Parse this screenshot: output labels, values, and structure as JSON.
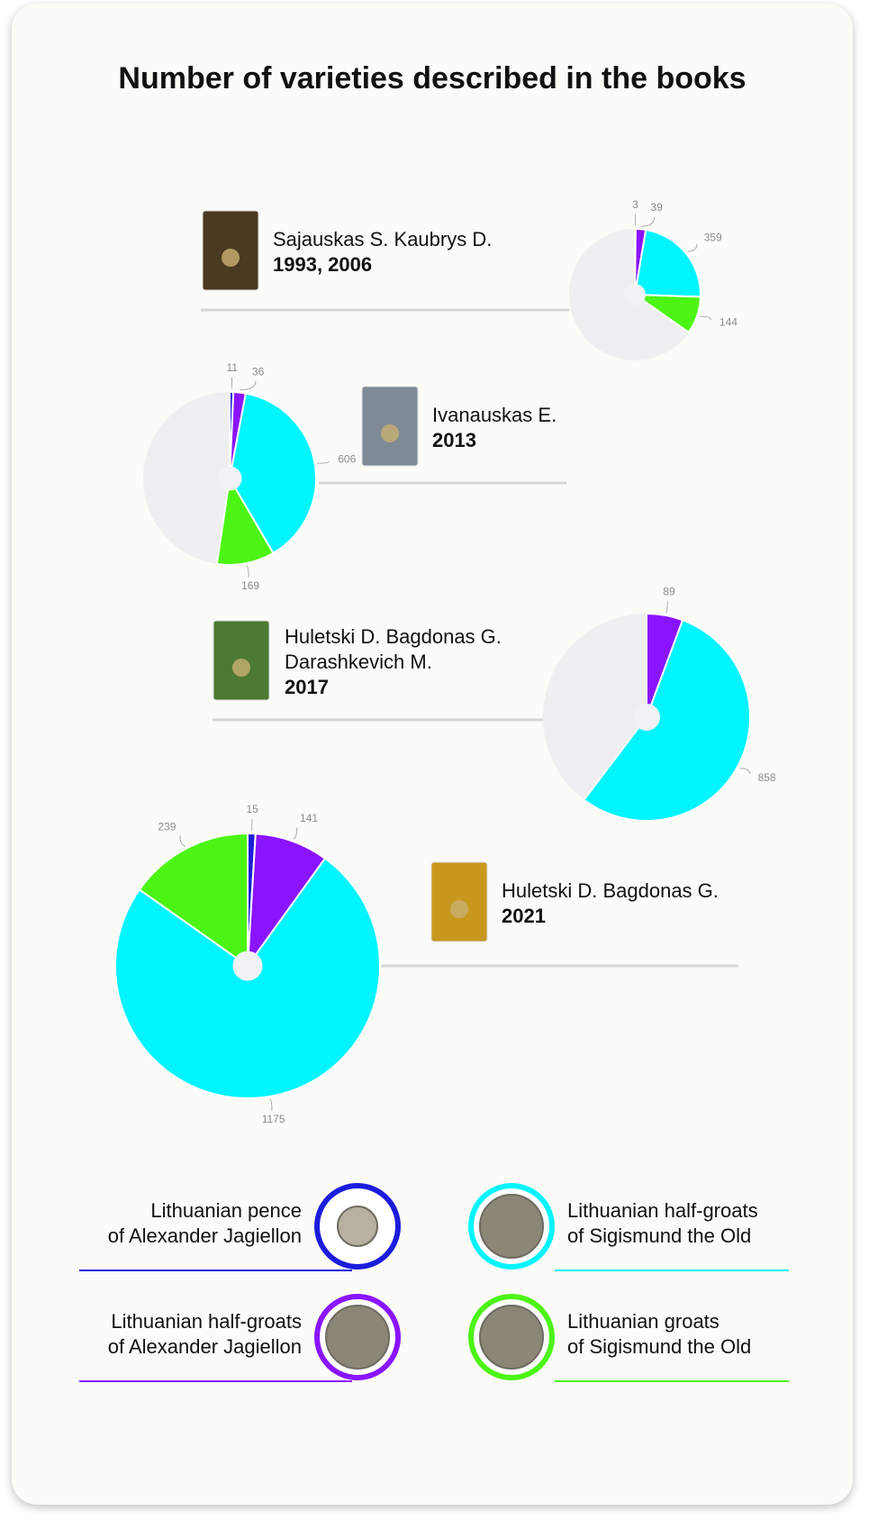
{
  "title": "Number of varieties described in the books",
  "legend": [
    {
      "name": "Lithuanian pence\nof Alexander Jagiellon",
      "color": "#1c1cdc"
    },
    {
      "name": "Lithuanian half-groats\nof Alexander Jagiellon",
      "color": "#8a14ff"
    },
    {
      "name": "Lithuanian half-groats\nof Sigismund the Old",
      "color": "#00f5ff"
    },
    {
      "name": "Lithuanian groats\nof Sigismund the Old",
      "color": "#4cf514"
    }
  ],
  "chart_data": [
    {
      "type": "pie",
      "title": "Sajauskas S. Kaubrys D.",
      "subtitle": "1993, 2006",
      "values": [
        3,
        39,
        359,
        144
      ]
    },
    {
      "type": "pie",
      "title": "Ivanauskas E.",
      "subtitle": "2013",
      "values": [
        11,
        36,
        606,
        169
      ]
    },
    {
      "type": "pie",
      "title": "Huletski D. Bagdonas G.\nDarashkevich M.",
      "subtitle": "2017",
      "values": [
        null,
        89,
        858,
        null
      ]
    },
    {
      "type": "pie",
      "title": "Huletski D. Bagdonas G.",
      "subtitle": "2021",
      "values": [
        15,
        141,
        1175,
        239
      ]
    }
  ]
}
